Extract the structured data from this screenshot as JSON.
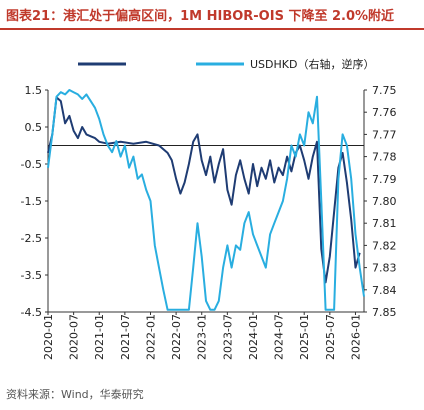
{
  "header": {
    "title": "图表21：港汇处于偏高区间，1M HIBOR-OIS 下降至 2.0%附近"
  },
  "footer": {
    "source": "资料来源：Wind，华泰研究"
  },
  "colors": {
    "title": "#c0392b",
    "hibor_ois": "#1f3c73",
    "usdhkd": "#29aee0"
  },
  "chart_data": {
    "type": "line",
    "title": "",
    "x_ticks": [
      "2020-01",
      "2020-07",
      "2021-01",
      "2021-07",
      "2022-01",
      "2022-07",
      "2023-01",
      "2023-07",
      "2024-01",
      "2024-07",
      "2025-01",
      "2025-07",
      "2026-01"
    ],
    "xlim": [
      "2020-01",
      "2026-03"
    ],
    "y_left": {
      "ylim": [
        -4.5,
        1.5
      ],
      "ticks": [
        "1.5",
        "0.5",
        "-0.5",
        "-1.5",
        "-2.5",
        "-3.5",
        "-4.5"
      ]
    },
    "y_right": {
      "ylim": [
        7.75,
        7.85
      ],
      "inverted": true,
      "ticks": [
        "7.75",
        "7.76",
        "7.77",
        "7.78",
        "7.79",
        "7.80",
        "7.81",
        "7.82",
        "7.83",
        "7.84",
        "7.85"
      ]
    },
    "legend": {
      "placement": "top"
    },
    "series": [
      {
        "name": "",
        "axis": "left",
        "color": "#1f3c73",
        "points": [
          [
            "2020-01",
            -0.2
          ],
          [
            "2020-02",
            0.3
          ],
          [
            "2020-03",
            1.3
          ],
          [
            "2020-04",
            1.2
          ],
          [
            "2020-05",
            0.6
          ],
          [
            "2020-06",
            0.8
          ],
          [
            "2020-07",
            0.4
          ],
          [
            "2020-08",
            0.2
          ],
          [
            "2020-09",
            0.5
          ],
          [
            "2020-10",
            0.3
          ],
          [
            "2020-11",
            0.25
          ],
          [
            "2020-12",
            0.2
          ],
          [
            "2021-01",
            0.1
          ],
          [
            "2021-03",
            0.05
          ],
          [
            "2021-06",
            0.1
          ],
          [
            "2021-09",
            0.05
          ],
          [
            "2021-12",
            0.1
          ],
          [
            "2022-03",
            0.0
          ],
          [
            "2022-05",
            -0.2
          ],
          [
            "2022-06",
            -0.4
          ],
          [
            "2022-07",
            -0.9
          ],
          [
            "2022-08",
            -1.3
          ],
          [
            "2022-09",
            -1.0
          ],
          [
            "2022-10",
            -0.5
          ],
          [
            "2022-11",
            0.1
          ],
          [
            "2022-12",
            0.3
          ],
          [
            "2023-01",
            -0.4
          ],
          [
            "2023-02",
            -0.8
          ],
          [
            "2023-03",
            -0.3
          ],
          [
            "2023-04",
            -1.0
          ],
          [
            "2023-05",
            -0.5
          ],
          [
            "2023-06",
            -0.1
          ],
          [
            "2023-07",
            -1.2
          ],
          [
            "2023-08",
            -1.6
          ],
          [
            "2023-09",
            -0.8
          ],
          [
            "2023-10",
            -0.4
          ],
          [
            "2023-11",
            -0.9
          ],
          [
            "2023-12",
            -1.3
          ],
          [
            "2024-01",
            -0.5
          ],
          [
            "2024-02",
            -1.1
          ],
          [
            "2024-03",
            -0.6
          ],
          [
            "2024-04",
            -0.9
          ],
          [
            "2024-05",
            -0.4
          ],
          [
            "2024-06",
            -1.0
          ],
          [
            "2024-07",
            -0.6
          ],
          [
            "2024-08",
            -0.8
          ],
          [
            "2024-09",
            -0.3
          ],
          [
            "2024-10",
            -0.7
          ],
          [
            "2024-11",
            -0.2
          ],
          [
            "2024-12",
            0.0
          ],
          [
            "2025-01",
            -0.4
          ],
          [
            "2025-02",
            -0.9
          ],
          [
            "2025-03",
            -0.3
          ],
          [
            "2025-04",
            0.1
          ],
          [
            "2025-05",
            -2.8
          ],
          [
            "2025-06",
            -3.7
          ],
          [
            "2025-07",
            -3.0
          ],
          [
            "2025-08",
            -1.8
          ],
          [
            "2025-09",
            -0.6
          ],
          [
            "2025-10",
            -0.2
          ],
          [
            "2025-11",
            -1.0
          ],
          [
            "2025-12",
            -2.0
          ],
          [
            "2026-01",
            -3.3
          ],
          [
            "2026-02",
            -2.9
          ]
        ]
      },
      {
        "name": "USDHKD（右轴，逆序）",
        "axis": "right",
        "color": "#29aee0",
        "points": [
          [
            "2020-01",
            7.785
          ],
          [
            "2020-02",
            7.77
          ],
          [
            "2020-03",
            7.753
          ],
          [
            "2020-04",
            7.751
          ],
          [
            "2020-05",
            7.752
          ],
          [
            "2020-06",
            7.75
          ],
          [
            "2020-07",
            7.751
          ],
          [
            "2020-08",
            7.752
          ],
          [
            "2020-09",
            7.754
          ],
          [
            "2020-10",
            7.752
          ],
          [
            "2020-11",
            7.755
          ],
          [
            "2020-12",
            7.758
          ],
          [
            "2021-01",
            7.763
          ],
          [
            "2021-02",
            7.77
          ],
          [
            "2021-03",
            7.775
          ],
          [
            "2021-04",
            7.778
          ],
          [
            "2021-05",
            7.773
          ],
          [
            "2021-06",
            7.78
          ],
          [
            "2021-07",
            7.775
          ],
          [
            "2021-08",
            7.785
          ],
          [
            "2021-09",
            7.78
          ],
          [
            "2021-10",
            7.79
          ],
          [
            "2021-11",
            7.788
          ],
          [
            "2021-12",
            7.795
          ],
          [
            "2022-01",
            7.8
          ],
          [
            "2022-02",
            7.82
          ],
          [
            "2022-03",
            7.83
          ],
          [
            "2022-04",
            7.84
          ],
          [
            "2022-05",
            7.849
          ],
          [
            "2022-06",
            7.849
          ],
          [
            "2022-07",
            7.849
          ],
          [
            "2022-08",
            7.849
          ],
          [
            "2022-09",
            7.849
          ],
          [
            "2022-10",
            7.849
          ],
          [
            "2022-11",
            7.83
          ],
          [
            "2022-12",
            7.81
          ],
          [
            "2023-01",
            7.825
          ],
          [
            "2023-02",
            7.845
          ],
          [
            "2023-03",
            7.849
          ],
          [
            "2023-04",
            7.849
          ],
          [
            "2023-05",
            7.845
          ],
          [
            "2023-06",
            7.83
          ],
          [
            "2023-07",
            7.82
          ],
          [
            "2023-08",
            7.83
          ],
          [
            "2023-09",
            7.82
          ],
          [
            "2023-10",
            7.822
          ],
          [
            "2023-11",
            7.81
          ],
          [
            "2023-12",
            7.805
          ],
          [
            "2024-01",
            7.815
          ],
          [
            "2024-02",
            7.82
          ],
          [
            "2024-03",
            7.825
          ],
          [
            "2024-04",
            7.83
          ],
          [
            "2024-05",
            7.815
          ],
          [
            "2024-06",
            7.81
          ],
          [
            "2024-07",
            7.805
          ],
          [
            "2024-08",
            7.8
          ],
          [
            "2024-09",
            7.79
          ],
          [
            "2024-10",
            7.775
          ],
          [
            "2024-11",
            7.78
          ],
          [
            "2024-12",
            7.77
          ],
          [
            "2025-01",
            7.775
          ],
          [
            "2025-02",
            7.76
          ],
          [
            "2025-03",
            7.765
          ],
          [
            "2025-04",
            7.753
          ],
          [
            "2025-05",
            7.8
          ],
          [
            "2025-06",
            7.849
          ],
          [
            "2025-07",
            7.849
          ],
          [
            "2025-08",
            7.849
          ],
          [
            "2025-09",
            7.79
          ],
          [
            "2025-10",
            7.77
          ],
          [
            "2025-11",
            7.775
          ],
          [
            "2025-12",
            7.79
          ],
          [
            "2026-01",
            7.815
          ],
          [
            "2026-02",
            7.83
          ],
          [
            "2026-03",
            7.843
          ]
        ]
      }
    ]
  }
}
